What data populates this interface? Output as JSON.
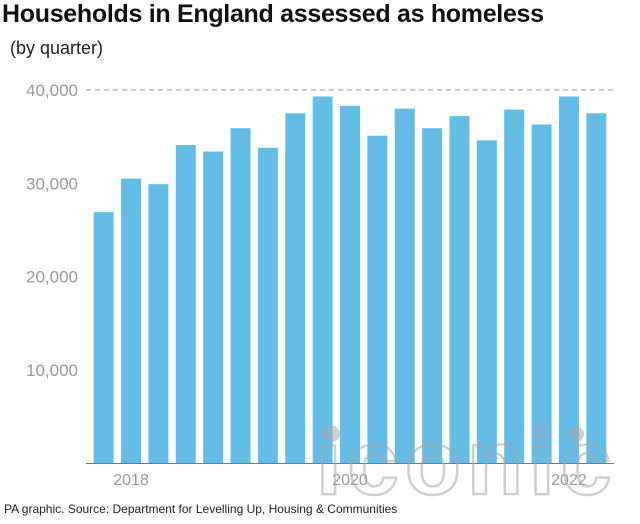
{
  "header": {
    "title": "Households in England assessed as homeless",
    "subtitle": "(by quarter)"
  },
  "footer": {
    "source": "PA graphic. Source: Department for Levelling Up, Housing & Communities"
  },
  "watermark": {
    "text": "iconic"
  },
  "colors": {
    "bar": "#64bde6",
    "axis_text": "#9a9a9a",
    "gridline": "#999999",
    "watermark": "#a9a9a9"
  },
  "chart_data": {
    "type": "bar",
    "values": [
      26900,
      30500,
      29900,
      34100,
      33400,
      35900,
      33800,
      37500,
      39300,
      38300,
      35100,
      38000,
      35900,
      37200,
      34600,
      37900,
      36300,
      39300,
      37500
    ],
    "ylim": [
      0,
      40000
    ],
    "yticks": [
      10000,
      20000,
      30000,
      40000
    ],
    "ytick_labels": [
      "10,000",
      "20,000",
      "30,000",
      "40,000"
    ],
    "xtick_labels": [
      {
        "label": "2018",
        "bar_index": 1
      },
      {
        "label": "2020",
        "bar_index": 9
      },
      {
        "label": "2022",
        "bar_index": 17
      }
    ],
    "gridlines": [
      40000
    ],
    "grid_style": "dashed"
  }
}
